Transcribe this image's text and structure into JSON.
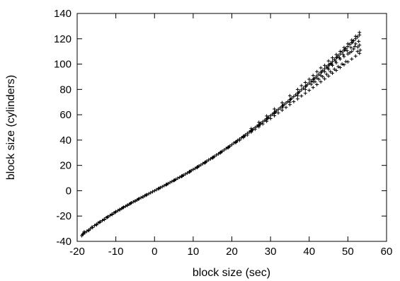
{
  "chart_data": {
    "type": "scatter",
    "title": "",
    "xlabel": "block size (sec)",
    "ylabel": "block size (cylinders)",
    "xlim": [
      -20,
      60
    ],
    "ylim": [
      -40,
      140
    ],
    "xticks": [
      -20,
      -10,
      0,
      10,
      20,
      30,
      40,
      50,
      60
    ],
    "yticks": [
      -40,
      -20,
      0,
      20,
      40,
      60,
      80,
      100,
      120,
      140
    ],
    "xtick_labels": [
      "-20",
      "-10",
      "0",
      "10",
      "20",
      "30",
      "40",
      "50",
      "60"
    ],
    "ytick_labels": [
      "-40",
      "-20",
      "0",
      "20",
      "40",
      "60",
      "80",
      "100",
      "120",
      "140"
    ],
    "grid": false,
    "legend": "none",
    "marker": "+",
    "marker_color": "#000000",
    "series": [
      {
        "points": [
          [
            -18.8,
            -35.5
          ],
          [
            -18.4,
            -34.0
          ],
          [
            -18.0,
            -33.2
          ],
          [
            -17.5,
            -32.0
          ],
          [
            -17.0,
            -31.0
          ],
          [
            -16.6,
            -30.0
          ],
          [
            -16.0,
            -29.0
          ],
          [
            -15.5,
            -27.5
          ],
          [
            -15.0,
            -26.5
          ],
          [
            -14.6,
            -25.5
          ],
          [
            -14.0,
            -24.5
          ],
          [
            -13.5,
            -23.5
          ],
          [
            -13.0,
            -22.5
          ],
          [
            -12.5,
            -21.3
          ],
          [
            -12.0,
            -20.5
          ],
          [
            -11.5,
            -19.5
          ],
          [
            -11.0,
            -18.5
          ],
          [
            -10.5,
            -17.5
          ],
          [
            -10.0,
            -16.5
          ],
          [
            -9.5,
            -15.8
          ],
          [
            -9.0,
            -14.8
          ],
          [
            -8.5,
            -14.0
          ],
          [
            -8.0,
            -13.0
          ],
          [
            -7.5,
            -12.3
          ],
          [
            -7.0,
            -11.3
          ],
          [
            -6.5,
            -10.5
          ],
          [
            -6.0,
            -9.6
          ],
          [
            -5.5,
            -8.8
          ],
          [
            -5.0,
            -8.0
          ],
          [
            -4.5,
            -7.2
          ],
          [
            -4.0,
            -6.3
          ],
          [
            -3.5,
            -5.5
          ],
          [
            -3.0,
            -4.8
          ],
          [
            -2.5,
            -3.9
          ],
          [
            -2.0,
            -3.2
          ],
          [
            -1.5,
            -2.4
          ],
          [
            -1.0,
            -1.6
          ],
          [
            -0.5,
            -0.8
          ],
          [
            0.0,
            0.0
          ],
          [
            0.5,
            0.8
          ],
          [
            1.0,
            1.6
          ],
          [
            1.5,
            2.4
          ],
          [
            2.0,
            3.2
          ],
          [
            2.5,
            4.0
          ],
          [
            3.0,
            4.8
          ],
          [
            3.5,
            5.6
          ],
          [
            4.0,
            6.5
          ],
          [
            4.5,
            7.3
          ],
          [
            5.0,
            8.1
          ],
          [
            5.5,
            8.9
          ],
          [
            6.0,
            9.8
          ],
          [
            6.5,
            10.6
          ],
          [
            7.0,
            11.5
          ],
          [
            7.5,
            12.3
          ],
          [
            8.0,
            13.2
          ],
          [
            8.5,
            14.0
          ],
          [
            9.0,
            15.0
          ],
          [
            9.5,
            15.9
          ],
          [
            10.0,
            16.8
          ],
          [
            10.5,
            17.6
          ],
          [
            11.0,
            18.6
          ],
          [
            11.5,
            19.5
          ],
          [
            12.0,
            20.4
          ],
          [
            12.5,
            21.4
          ],
          [
            13.0,
            22.3
          ],
          [
            13.5,
            23.3
          ],
          [
            14.0,
            24.3
          ],
          [
            14.5,
            25.2
          ],
          [
            15.0,
            26.2
          ],
          [
            15.5,
            27.1
          ],
          [
            16.0,
            28.2
          ],
          [
            16.5,
            29.1
          ],
          [
            17.0,
            30.2
          ],
          [
            17.5,
            31.1
          ],
          [
            18.0,
            32.2
          ],
          [
            18.5,
            33.3
          ],
          [
            19.0,
            34.3
          ],
          [
            19.5,
            35.3
          ],
          [
            20.0,
            36.4
          ],
          [
            20.5,
            37.6
          ],
          [
            21.0,
            38.5
          ],
          [
            21.5,
            39.7
          ],
          [
            22.0,
            40.8
          ],
          [
            22.5,
            41.8
          ],
          [
            23.0,
            43.0
          ],
          [
            23.5,
            44.0
          ],
          [
            24.0,
            45.3
          ],
          [
            24.5,
            46.3
          ],
          [
            25.0,
            47.5
          ],
          [
            25.5,
            48.6
          ],
          [
            26.0,
            49.8
          ],
          [
            26.5,
            51.0
          ],
          [
            27.0,
            52.1
          ],
          [
            27.5,
            53.3
          ],
          [
            28.0,
            54.5
          ],
          [
            28.5,
            55.6
          ],
          [
            29.0,
            56.9
          ],
          [
            29.5,
            58.0
          ],
          [
            30.0,
            59.3
          ],
          [
            30.5,
            60.5
          ],
          [
            31.0,
            61.7
          ],
          [
            31.5,
            63.0
          ],
          [
            32.0,
            64.2
          ],
          [
            32.5,
            65.4
          ],
          [
            33.0,
            66.7
          ],
          [
            33.5,
            68.0
          ],
          [
            34.0,
            69.3
          ],
          [
            34.5,
            70.5
          ],
          [
            35.0,
            71.8
          ],
          [
            35.5,
            73.1
          ],
          [
            36.0,
            74.4
          ],
          [
            36.5,
            75.7
          ],
          [
            37.0,
            77.0
          ],
          [
            37.5,
            78.3
          ],
          [
            38.0,
            79.7
          ],
          [
            38.5,
            81.0
          ],
          [
            39.0,
            82.4
          ],
          [
            39.5,
            83.7
          ],
          [
            40.0,
            85.1
          ],
          [
            40.5,
            86.5
          ],
          [
            41.0,
            87.9
          ],
          [
            41.5,
            89.2
          ],
          [
            42.0,
            90.7
          ],
          [
            42.5,
            92.0
          ],
          [
            43.0,
            93.5
          ],
          [
            43.5,
            94.9
          ],
          [
            44.0,
            96.3
          ],
          [
            44.5,
            97.7
          ],
          [
            45.0,
            99.2
          ],
          [
            45.5,
            100.6
          ],
          [
            46.0,
            102.0
          ],
          [
            46.5,
            103.5
          ],
          [
            47.0,
            105.0
          ],
          [
            47.5,
            106.5
          ],
          [
            48.0,
            108.0
          ],
          [
            48.5,
            109.5
          ],
          [
            49.0,
            111.0
          ],
          [
            49.5,
            112.5
          ],
          [
            50.0,
            114.0
          ],
          [
            50.5,
            115.6
          ],
          [
            51.0,
            117.0
          ],
          [
            51.5,
            118.5
          ],
          [
            52.0,
            120.0
          ],
          [
            52.5,
            121.5
          ],
          [
            53.0,
            123.0
          ],
          [
            22.0,
            39.8
          ],
          [
            23.0,
            42.0
          ],
          [
            24.0,
            44.0
          ],
          [
            25.0,
            46.3
          ],
          [
            26.0,
            48.5
          ],
          [
            27.0,
            50.5
          ],
          [
            28.0,
            52.7
          ],
          [
            29.0,
            54.8
          ],
          [
            30.0,
            57.0
          ],
          [
            31.0,
            59.2
          ],
          [
            32.0,
            61.4
          ],
          [
            33.0,
            63.6
          ],
          [
            34.0,
            65.8
          ],
          [
            35.0,
            68.0
          ],
          [
            36.0,
            70.3
          ],
          [
            37.0,
            72.5
          ],
          [
            38.0,
            74.8
          ],
          [
            39.0,
            77.0
          ],
          [
            40.0,
            79.3
          ],
          [
            41.0,
            81.5
          ],
          [
            42.0,
            83.8
          ],
          [
            43.0,
            86.0
          ],
          [
            44.0,
            88.3
          ],
          [
            45.0,
            90.5
          ],
          [
            46.0,
            92.8
          ],
          [
            47.0,
            95.0
          ],
          [
            48.0,
            97.3
          ],
          [
            49.0,
            99.5
          ],
          [
            50.0,
            101.8
          ],
          [
            51.0,
            104.0
          ],
          [
            52.0,
            106.3
          ],
          [
            53.0,
            108.5
          ],
          [
            25.0,
            49.0
          ],
          [
            27.0,
            54.0
          ],
          [
            29.0,
            59.0
          ],
          [
            31.0,
            64.5
          ],
          [
            33.0,
            69.5
          ],
          [
            35.0,
            75.0
          ],
          [
            37.0,
            80.0
          ],
          [
            38.0,
            83.0
          ],
          [
            39.0,
            85.5
          ],
          [
            40.0,
            88.0
          ],
          [
            41.0,
            91.0
          ],
          [
            42.0,
            94.0
          ],
          [
            43.0,
            97.0
          ],
          [
            44.0,
            99.0
          ],
          [
            45.0,
            102.5
          ],
          [
            46.0,
            105.0
          ],
          [
            47.0,
            107.5
          ],
          [
            48.0,
            110.0
          ],
          [
            49.0,
            113.0
          ],
          [
            50.0,
            116.0
          ],
          [
            51.0,
            119.0
          ],
          [
            52.0,
            122.0
          ],
          [
            53.0,
            125.0
          ],
          [
            40.5,
            84.0
          ],
          [
            41.5,
            86.0
          ],
          [
            42.5,
            88.0
          ],
          [
            43.5,
            90.0
          ],
          [
            44.5,
            92.0
          ],
          [
            45.5,
            94.0
          ],
          [
            46.5,
            96.0
          ],
          [
            47.5,
            98.0
          ],
          [
            48.5,
            100.0
          ],
          [
            49.5,
            102.0
          ],
          [
            50.5,
            109.0
          ],
          [
            51.5,
            112.0
          ],
          [
            52.5,
            110.0
          ],
          [
            53.0,
            115.0
          ],
          [
            52.0,
            116.0
          ],
          [
            51.0,
            110.0
          ],
          [
            50.0,
            108.0
          ],
          [
            49.0,
            106.0
          ],
          [
            48.0,
            104.0
          ],
          [
            47.0,
            101.0
          ],
          [
            46.0,
            99.0
          ],
          [
            45.0,
            96.0
          ],
          [
            44.0,
            94.0
          ],
          [
            43.0,
            91.0
          ],
          [
            42.0,
            89.0
          ],
          [
            41.0,
            86.0
          ],
          [
            39.0,
            80.0
          ],
          [
            37.0,
            75.0
          ],
          [
            35.0,
            70.0
          ],
          [
            33.0,
            65.5
          ],
          [
            31.0,
            61.0
          ],
          [
            29.0,
            56.0
          ],
          [
            27.0,
            51.5
          ],
          [
            25.0,
            47.0
          ],
          [
            23.0,
            42.5
          ],
          [
            21.0,
            38.0
          ],
          [
            19.0,
            33.8
          ],
          [
            17.0,
            29.8
          ],
          [
            15.0,
            25.8
          ],
          [
            13.0,
            21.9
          ],
          [
            11.0,
            18.3
          ],
          [
            9.0,
            14.7
          ],
          [
            7.0,
            11.3
          ],
          [
            5.0,
            8.0
          ],
          [
            3.0,
            4.7
          ],
          [
            -3.0,
            -5.0
          ],
          [
            -5.0,
            -8.3
          ],
          [
            -7.0,
            -11.6
          ],
          [
            -9.0,
            -15.2
          ],
          [
            -11.0,
            -18.9
          ],
          [
            -13.0,
            -22.9
          ],
          [
            -15.0,
            -27.0
          ],
          [
            -17.0,
            -31.5
          ],
          [
            -18.6,
            -34.5
          ],
          [
            -18.2,
            -32.5
          ],
          [
            -16.2,
            -28.8
          ],
          [
            -14.2,
            -25.0
          ],
          [
            -12.2,
            -21.0
          ],
          [
            -10.2,
            -17.2
          ],
          [
            -8.2,
            -13.5
          ],
          [
            -6.2,
            -10.0
          ],
          [
            -4.2,
            -6.7
          ],
          [
            -2.2,
            -3.5
          ],
          [
            1.2,
            1.9
          ],
          [
            3.2,
            5.1
          ],
          [
            5.2,
            8.4
          ],
          [
            7.2,
            11.8
          ],
          [
            9.2,
            15.3
          ],
          [
            11.2,
            18.9
          ],
          [
            13.2,
            22.6
          ],
          [
            15.2,
            26.5
          ],
          [
            17.2,
            30.5
          ],
          [
            19.2,
            34.6
          ],
          [
            21.2,
            38.9
          ],
          [
            23.2,
            43.3
          ],
          [
            25.2,
            47.8
          ],
          [
            27.2,
            52.4
          ],
          [
            29.2,
            57.3
          ],
          [
            31.2,
            62.2
          ],
          [
            33.2,
            67.2
          ],
          [
            35.2,
            72.2
          ],
          [
            37.2,
            77.3
          ],
          [
            39.2,
            82.6
          ],
          [
            41.2,
            88.2
          ],
          [
            43.2,
            93.7
          ],
          [
            45.2,
            99.4
          ],
          [
            47.2,
            105.3
          ],
          [
            49.2,
            111.2
          ],
          [
            51.2,
            117.3
          ],
          [
            52.8,
            118.0
          ],
          [
            53.2,
            111.0
          ],
          [
            52.6,
            113.5
          ],
          [
            51.8,
            114.0
          ],
          [
            50.8,
            113.0
          ],
          [
            49.8,
            110.5
          ],
          [
            48.8,
            107.5
          ],
          [
            47.8,
            105.0
          ],
          [
            46.8,
            102.5
          ],
          [
            45.8,
            100.0
          ],
          [
            44.8,
            97.0
          ]
        ]
      }
    ]
  }
}
